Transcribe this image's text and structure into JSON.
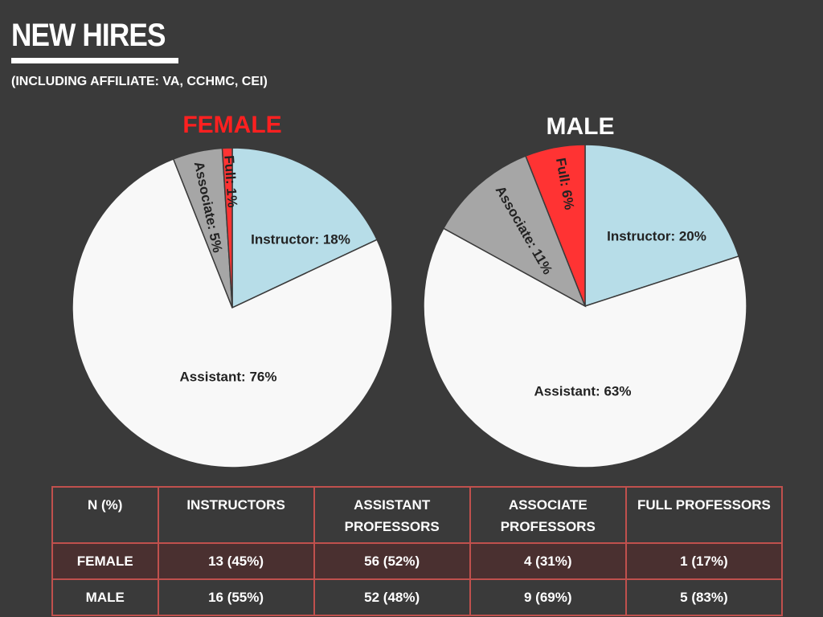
{
  "header": {
    "title": "NEW HIRES",
    "subtitle": "(INCLUDING AFFILIATE: VA, CCHMC, CEI)"
  },
  "chart_data": [
    {
      "type": "pie",
      "title": "FEMALE",
      "title_color": "#ff2020",
      "slices": [
        {
          "label": "Instructor: 18%",
          "value": 18,
          "color": "#b7dde8"
        },
        {
          "label": "Assistant: 76%",
          "value": 76,
          "color": "#f8f8f8"
        },
        {
          "label": "Associate: 5%",
          "value": 5,
          "color": "#a6a6a6"
        },
        {
          "label": "Full: 1%",
          "value": 1,
          "color": "#ff3333"
        }
      ]
    },
    {
      "type": "pie",
      "title": "MALE",
      "title_color": "#ffffff",
      "slices": [
        {
          "label": "Instructor: 20%",
          "value": 20,
          "color": "#b7dde8"
        },
        {
          "label": "Assistant: 63%",
          "value": 63,
          "color": "#f8f8f8"
        },
        {
          "label": "Associate: 11%",
          "value": 11,
          "color": "#a6a6a6"
        },
        {
          "label": "Full: 6%",
          "value": 6,
          "color": "#ff3333"
        }
      ]
    }
  ],
  "table": {
    "headers": [
      "N (%)",
      "INSTRUCTORS",
      "ASSISTANT PROFESSORS",
      "ASSOCIATE PROFESSORS",
      "FULL PROFESSORS"
    ],
    "rows": [
      [
        "FEMALE",
        "13 (45%)",
        "56 (52%)",
        "4 (31%)",
        "1 (17%)"
      ],
      [
        "MALE",
        "16 (55%)",
        "52 (48%)",
        "9 (69%)",
        "5 (83%)"
      ]
    ],
    "border_color": "#c0504d"
  }
}
